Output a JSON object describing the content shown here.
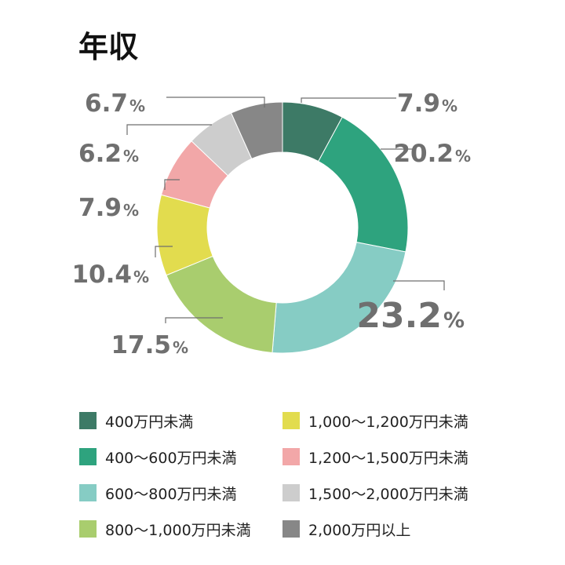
{
  "chart_data": {
    "type": "pie",
    "variant": "donut",
    "title": "年収",
    "unit": "%",
    "categories": [
      "400万円未満",
      "400〜600万円未満",
      "600〜800万円未満",
      "800〜1,000万円未満",
      "1,000〜1,200万円未満",
      "1,200〜1,500万円未満",
      "1,500〜2,000万円未満",
      "2,000万円以上"
    ],
    "values": [
      7.9,
      20.2,
      23.2,
      17.5,
      10.4,
      7.9,
      6.2,
      6.7
    ],
    "value_labels": [
      "7.9",
      "20.2",
      "23.2",
      "17.5",
      "10.4",
      "7.9",
      "6.2",
      "6.7"
    ],
    "colors": [
      "#3d7a66",
      "#2ea37e",
      "#86ccc4",
      "#a9cd6e",
      "#e2dc4e",
      "#f2a7a8",
      "#cdcdcd",
      "#878787"
    ],
    "legend_position": "bottom"
  }
}
